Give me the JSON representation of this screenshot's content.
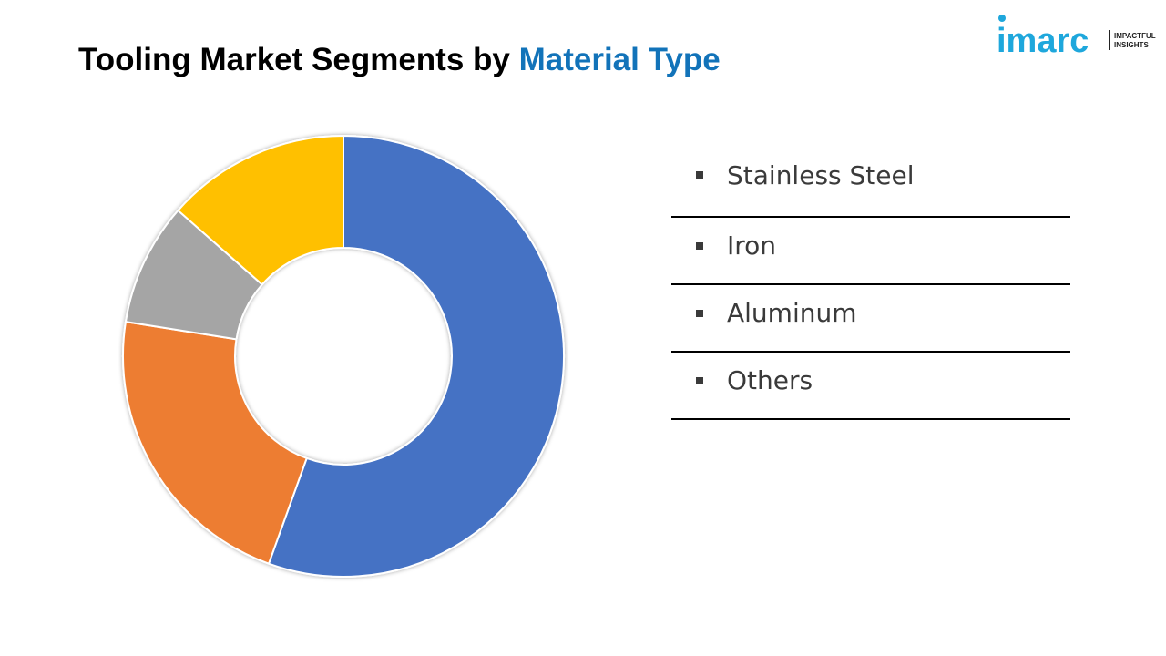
{
  "header": {
    "title_main": "Tooling Market Segments by ",
    "title_accent": "Material Type"
  },
  "logo": {
    "brand": "imarc",
    "tagline_line1": "IMPACTFUL",
    "tagline_line2": "INSIGHTS",
    "brand_color": "#1ea7dc"
  },
  "colors": {
    "title_accent": "#1273b9",
    "stainless_steel": "#4472c4",
    "iron": "#ed7d31",
    "aluminum": "#a5a5a5",
    "others": "#ffc000"
  },
  "chart_data": {
    "type": "pie",
    "variant": "donut",
    "title": "Tooling Market Segments by Material Type",
    "categories": [
      "Stainless Steel",
      "Iron",
      "Aluminum",
      "Others"
    ],
    "values": [
      55.5,
      22.0,
      9.0,
      13.5
    ],
    "unit": "%",
    "colors": [
      "#4472c4",
      "#ed7d31",
      "#a5a5a5",
      "#ffc000"
    ],
    "start_angle": "12 o'clock",
    "direction": "clockwise",
    "legend_position": "right"
  }
}
